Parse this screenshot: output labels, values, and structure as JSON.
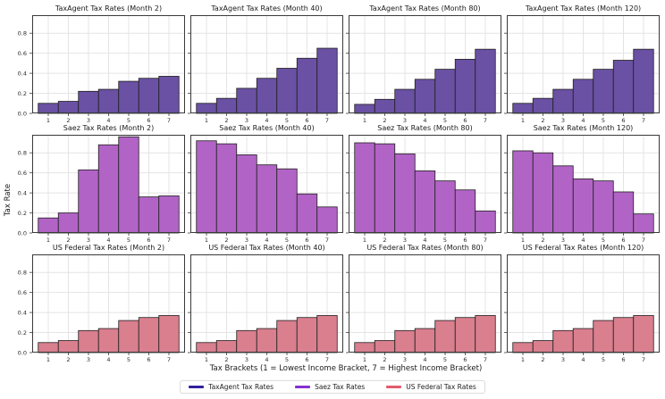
{
  "figure": {
    "ylabel": "Tax Rate",
    "xlabel": "Tax Brackets (1 = Lowest Income Bracket, 7 = Highest Income Bracket)",
    "background": "#ffffff"
  },
  "axes": {
    "x_ticks": [
      "1",
      "2",
      "3",
      "4",
      "5",
      "6",
      "7"
    ],
    "y_ticks": [
      "0.0",
      "0.2",
      "0.4",
      "0.6",
      "0.8"
    ],
    "y_tick_values": [
      0.0,
      0.2,
      0.4,
      0.6,
      0.8
    ],
    "ylim": [
      0,
      0.98
    ],
    "grid": true,
    "grid_color": "#e4e4e4",
    "spine_color": "#3a3a3a",
    "tick_color": "#3a3a3a",
    "tick_label_color": "#2b2b2b"
  },
  "series_styles": {
    "taxagent": {
      "bar_fill": "#6a51a3",
      "bar_edge": "#1f1f1f",
      "legend_color": "#31219c"
    },
    "saez": {
      "bar_fill": "#b164c5",
      "bar_edge": "#1f1f1f",
      "legend_color": "#8630d0"
    },
    "usfed": {
      "bar_fill": "#d97f8e",
      "bar_edge": "#1f1f1f",
      "legend_color": "#e25c6c"
    }
  },
  "legend": {
    "position": "lower center",
    "items": [
      {
        "label": "TaxAgent Tax Rates",
        "series": "taxagent"
      },
      {
        "label": "Saez Tax Rates",
        "series": "saez"
      },
      {
        "label": "US Federal Tax Rates",
        "series": "usfed"
      }
    ]
  },
  "chart_data": [
    {
      "type": "bar",
      "title": "TaxAgent Tax Rates (Month 2)",
      "series": "taxagent",
      "row": 0,
      "col": 0,
      "categories": [
        1,
        2,
        3,
        4,
        5,
        6,
        7
      ],
      "values": [
        0.1,
        0.12,
        0.22,
        0.24,
        0.32,
        0.35,
        0.37
      ],
      "xlim": [
        0.2,
        7.8
      ],
      "ylim": [
        0,
        0.98
      ]
    },
    {
      "type": "bar",
      "title": "TaxAgent Tax Rates (Month 40)",
      "series": "taxagent",
      "row": 0,
      "col": 1,
      "categories": [
        1,
        2,
        3,
        4,
        5,
        6,
        7
      ],
      "values": [
        0.1,
        0.15,
        0.25,
        0.35,
        0.45,
        0.55,
        0.65
      ],
      "xlim": [
        0.2,
        7.8
      ],
      "ylim": [
        0,
        0.98
      ]
    },
    {
      "type": "bar",
      "title": "TaxAgent Tax Rates (Month 80)",
      "series": "taxagent",
      "row": 0,
      "col": 2,
      "categories": [
        1,
        2,
        3,
        4,
        5,
        6,
        7
      ],
      "values": [
        0.09,
        0.14,
        0.24,
        0.34,
        0.44,
        0.54,
        0.64
      ],
      "xlim": [
        0.2,
        7.8
      ],
      "ylim": [
        0,
        0.98
      ]
    },
    {
      "type": "bar",
      "title": "TaxAgent Tax Rates (Month 120)",
      "series": "taxagent",
      "row": 0,
      "col": 3,
      "categories": [
        1,
        2,
        3,
        4,
        5,
        6,
        7
      ],
      "values": [
        0.1,
        0.15,
        0.24,
        0.34,
        0.44,
        0.53,
        0.64
      ],
      "xlim": [
        0.2,
        7.8
      ],
      "ylim": [
        0,
        0.98
      ]
    },
    {
      "type": "bar",
      "title": "Saez Tax Rates (Month 2)",
      "series": "saez",
      "row": 1,
      "col": 0,
      "categories": [
        1,
        2,
        3,
        4,
        5,
        6,
        7
      ],
      "values": [
        0.15,
        0.2,
        0.63,
        0.88,
        0.96,
        0.36,
        0.37
      ],
      "xlim": [
        0.2,
        7.8
      ],
      "ylim": [
        0,
        0.98
      ]
    },
    {
      "type": "bar",
      "title": "Saez Tax Rates (Month 40)",
      "series": "saez",
      "row": 1,
      "col": 1,
      "categories": [
        1,
        2,
        3,
        4,
        5,
        6,
        7
      ],
      "values": [
        0.92,
        0.89,
        0.78,
        0.68,
        0.64,
        0.39,
        0.26
      ],
      "xlim": [
        0.2,
        7.8
      ],
      "ylim": [
        0,
        0.98
      ]
    },
    {
      "type": "bar",
      "title": "Saez Tax Rates (Month 80)",
      "series": "saez",
      "row": 1,
      "col": 2,
      "categories": [
        1,
        2,
        3,
        4,
        5,
        6,
        7
      ],
      "values": [
        0.9,
        0.89,
        0.79,
        0.62,
        0.52,
        0.43,
        0.22
      ],
      "xlim": [
        0.2,
        7.8
      ],
      "ylim": [
        0,
        0.98
      ]
    },
    {
      "type": "bar",
      "title": "Saez Tax Rates (Month 120)",
      "series": "saez",
      "row": 1,
      "col": 3,
      "categories": [
        1,
        2,
        3,
        4,
        5,
        6,
        7
      ],
      "values": [
        0.82,
        0.8,
        0.67,
        0.54,
        0.52,
        0.41,
        0.19
      ],
      "xlim": [
        0.2,
        7.8
      ],
      "ylim": [
        0,
        0.98
      ]
    },
    {
      "type": "bar",
      "title": "US Federal Tax Rates (Month 2)",
      "series": "usfed",
      "row": 2,
      "col": 0,
      "categories": [
        1,
        2,
        3,
        4,
        5,
        6,
        7
      ],
      "values": [
        0.1,
        0.12,
        0.22,
        0.24,
        0.32,
        0.35,
        0.37
      ],
      "xlim": [
        0.2,
        7.8
      ],
      "ylim": [
        0,
        0.98
      ]
    },
    {
      "type": "bar",
      "title": "US Federal Tax Rates (Month 40)",
      "series": "usfed",
      "row": 2,
      "col": 1,
      "categories": [
        1,
        2,
        3,
        4,
        5,
        6,
        7
      ],
      "values": [
        0.1,
        0.12,
        0.22,
        0.24,
        0.32,
        0.35,
        0.37
      ],
      "xlim": [
        0.2,
        7.8
      ],
      "ylim": [
        0,
        0.98
      ]
    },
    {
      "type": "bar",
      "title": "US Federal Tax Rates (Month 80)",
      "series": "usfed",
      "row": 2,
      "col": 2,
      "categories": [
        1,
        2,
        3,
        4,
        5,
        6,
        7
      ],
      "values": [
        0.1,
        0.12,
        0.22,
        0.24,
        0.32,
        0.35,
        0.37
      ],
      "xlim": [
        0.2,
        7.8
      ],
      "ylim": [
        0,
        0.98
      ]
    },
    {
      "type": "bar",
      "title": "US Federal Tax Rates (Month 120)",
      "series": "usfed",
      "row": 2,
      "col": 3,
      "categories": [
        1,
        2,
        3,
        4,
        5,
        6,
        7
      ],
      "values": [
        0.1,
        0.12,
        0.22,
        0.24,
        0.32,
        0.35,
        0.37
      ],
      "xlim": [
        0.2,
        7.8
      ],
      "ylim": [
        0,
        0.98
      ]
    }
  ]
}
